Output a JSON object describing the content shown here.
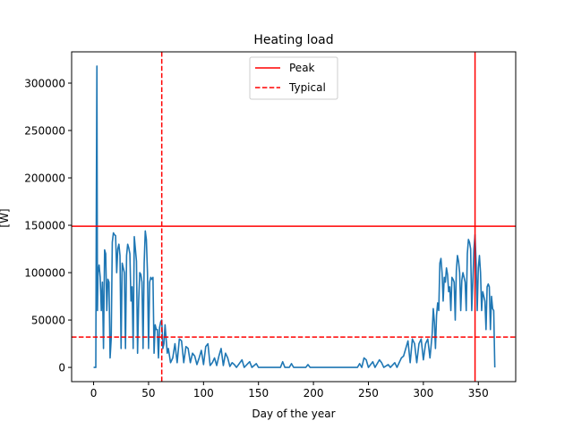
{
  "chart_data": {
    "type": "line",
    "title": "Heating load",
    "xlabel": "Day of the year",
    "ylabel": "[W]",
    "xlim": [
      -20,
      384
    ],
    "ylim": [
      -15000,
      333000
    ],
    "xticks": [
      0,
      50,
      100,
      150,
      200,
      250,
      300,
      350
    ],
    "yticks": [
      0,
      50000,
      100000,
      150000,
      200000,
      250000,
      300000
    ],
    "grid": false,
    "legend_placement": "upper center",
    "series": [
      {
        "name": "",
        "color": "#1f77b4",
        "style": "solid",
        "envelope": [
          [
            0,
            0
          ],
          [
            2,
            0
          ],
          [
            2.5,
            180000
          ],
          [
            3,
            318000
          ],
          [
            3.5,
            60000
          ],
          [
            4,
            100000
          ],
          [
            5,
            108000
          ],
          [
            6,
            95000
          ],
          [
            7,
            60000
          ],
          [
            8,
            90000
          ],
          [
            9,
            20000
          ],
          [
            10,
            124000
          ],
          [
            11,
            120000
          ],
          [
            12,
            60000
          ],
          [
            13,
            93000
          ],
          [
            14,
            90000
          ],
          [
            15,
            10000
          ],
          [
            16,
            30000
          ],
          [
            17,
            132000
          ],
          [
            18,
            142000
          ],
          [
            19,
            140000
          ],
          [
            20,
            139000
          ],
          [
            21,
            100000
          ],
          [
            22,
            125000
          ],
          [
            23,
            130000
          ],
          [
            24,
            118000
          ],
          [
            25,
            20000
          ],
          [
            26,
            110000
          ],
          [
            27,
            105000
          ],
          [
            28,
            100000
          ],
          [
            29,
            20000
          ],
          [
            30,
            118000
          ],
          [
            31,
            130000
          ],
          [
            32,
            126000
          ],
          [
            33,
            120000
          ],
          [
            34,
            70000
          ],
          [
            35,
            85000
          ],
          [
            36,
            20000
          ],
          [
            37,
            138000
          ],
          [
            38,
            125000
          ],
          [
            39,
            112000
          ],
          [
            40,
            15000
          ],
          [
            41,
            70000
          ],
          [
            42,
            100000
          ],
          [
            43,
            98000
          ],
          [
            44,
            90000
          ],
          [
            45,
            20000
          ],
          [
            46,
            110000
          ],
          [
            47,
            144000
          ],
          [
            48,
            135000
          ],
          [
            49,
            100000
          ],
          [
            50,
            20000
          ],
          [
            51,
            90000
          ],
          [
            52,
            95000
          ],
          [
            53,
            93000
          ],
          [
            54,
            95000
          ],
          [
            55,
            15000
          ],
          [
            56,
            45000
          ],
          [
            57,
            40000
          ],
          [
            58,
            40000
          ],
          [
            59,
            10000
          ],
          [
            60,
            42000
          ],
          [
            61,
            48000
          ],
          [
            62,
            50000
          ],
          [
            63,
            20000
          ],
          [
            64,
            25000
          ],
          [
            65,
            45000
          ],
          [
            66,
            30000
          ],
          [
            67,
            15000
          ],
          [
            68,
            20000
          ],
          [
            70,
            5000
          ],
          [
            72,
            10000
          ],
          [
            74,
            25000
          ],
          [
            76,
            5000
          ],
          [
            78,
            30000
          ],
          [
            80,
            28000
          ],
          [
            82,
            5000
          ],
          [
            84,
            22000
          ],
          [
            86,
            20000
          ],
          [
            88,
            5000
          ],
          [
            90,
            15000
          ],
          [
            92,
            12000
          ],
          [
            94,
            3000
          ],
          [
            96,
            10000
          ],
          [
            98,
            18000
          ],
          [
            100,
            3000
          ],
          [
            102,
            22000
          ],
          [
            104,
            25000
          ],
          [
            106,
            2000
          ],
          [
            108,
            5000
          ],
          [
            110,
            10000
          ],
          [
            112,
            2000
          ],
          [
            114,
            12000
          ],
          [
            116,
            20000
          ],
          [
            118,
            2000
          ],
          [
            120,
            15000
          ],
          [
            122,
            10000
          ],
          [
            124,
            1000
          ],
          [
            126,
            5000
          ],
          [
            128,
            3000
          ],
          [
            130,
            0
          ],
          [
            135,
            8000
          ],
          [
            137,
            0
          ],
          [
            142,
            6000
          ],
          [
            144,
            0
          ],
          [
            148,
            4000
          ],
          [
            150,
            0
          ],
          [
            170,
            0
          ],
          [
            172,
            6000
          ],
          [
            174,
            0
          ],
          [
            178,
            0
          ],
          [
            180,
            4000
          ],
          [
            182,
            0
          ],
          [
            193,
            0
          ],
          [
            195,
            3000
          ],
          [
            197,
            0
          ],
          [
            240,
            0
          ],
          [
            242,
            4000
          ],
          [
            244,
            0
          ],
          [
            246,
            10000
          ],
          [
            248,
            8000
          ],
          [
            250,
            0
          ],
          [
            254,
            6000
          ],
          [
            256,
            0
          ],
          [
            260,
            8000
          ],
          [
            262,
            5000
          ],
          [
            264,
            0
          ],
          [
            268,
            3000
          ],
          [
            270,
            0
          ],
          [
            274,
            5000
          ],
          [
            276,
            0
          ],
          [
            280,
            10000
          ],
          [
            282,
            12000
          ],
          [
            284,
            20000
          ],
          [
            286,
            28000
          ],
          [
            288,
            5000
          ],
          [
            290,
            30000
          ],
          [
            292,
            25000
          ],
          [
            294,
            5000
          ],
          [
            296,
            25000
          ],
          [
            298,
            30000
          ],
          [
            300,
            8000
          ],
          [
            302,
            25000
          ],
          [
            304,
            30000
          ],
          [
            306,
            10000
          ],
          [
            308,
            35000
          ],
          [
            309,
            62000
          ],
          [
            310,
            48000
          ],
          [
            311,
            20000
          ],
          [
            312,
            55000
          ],
          [
            313,
            68000
          ],
          [
            314,
            60000
          ],
          [
            315,
            110000
          ],
          [
            316,
            115000
          ],
          [
            317,
            100000
          ],
          [
            318,
            70000
          ],
          [
            319,
            95000
          ],
          [
            320,
            90000
          ],
          [
            321,
            105000
          ],
          [
            322,
            98000
          ],
          [
            323,
            80000
          ],
          [
            324,
            85000
          ],
          [
            325,
            60000
          ],
          [
            326,
            95000
          ],
          [
            327,
            93000
          ],
          [
            328,
            90000
          ],
          [
            329,
            50000
          ],
          [
            330,
            102000
          ],
          [
            331,
            118000
          ],
          [
            332,
            112000
          ],
          [
            333,
            100000
          ],
          [
            334,
            60000
          ],
          [
            335,
            92000
          ],
          [
            336,
            100000
          ],
          [
            337,
            95000
          ],
          [
            338,
            90000
          ],
          [
            339,
            60000
          ],
          [
            340,
            120000
          ],
          [
            341,
            135000
          ],
          [
            342,
            132000
          ],
          [
            343,
            125000
          ],
          [
            344,
            60000
          ],
          [
            345,
            90000
          ],
          [
            346,
            125000
          ],
          [
            347,
            140000
          ],
          [
            348,
            110000
          ],
          [
            349,
            60000
          ],
          [
            350,
            105000
          ],
          [
            351,
            118000
          ],
          [
            352,
            100000
          ],
          [
            353,
            60000
          ],
          [
            354,
            80000
          ],
          [
            355,
            75000
          ],
          [
            356,
            70000
          ],
          [
            357,
            40000
          ],
          [
            358,
            85000
          ],
          [
            359,
            88000
          ],
          [
            360,
            85000
          ],
          [
            361,
            40000
          ],
          [
            362,
            75000
          ],
          [
            363,
            62000
          ],
          [
            364,
            60000
          ],
          [
            365,
            0
          ]
        ]
      }
    ],
    "reference_lines": [
      {
        "name": "Peak",
        "orientation": "horizontal",
        "value": 149000,
        "color": "#ff0000",
        "style": "solid"
      },
      {
        "name": "Peak",
        "orientation": "vertical",
        "value": 347,
        "color": "#ff0000",
        "style": "solid"
      },
      {
        "name": "Typical",
        "orientation": "horizontal",
        "value": 32000,
        "color": "#ff0000",
        "style": "dashed"
      },
      {
        "name": "Typical",
        "orientation": "vertical",
        "value": 62,
        "color": "#ff0000",
        "style": "dashed"
      }
    ],
    "legend": [
      {
        "label": "Peak",
        "color": "#ff0000",
        "style": "solid"
      },
      {
        "label": "Typical",
        "color": "#ff0000",
        "style": "dashed"
      }
    ]
  }
}
